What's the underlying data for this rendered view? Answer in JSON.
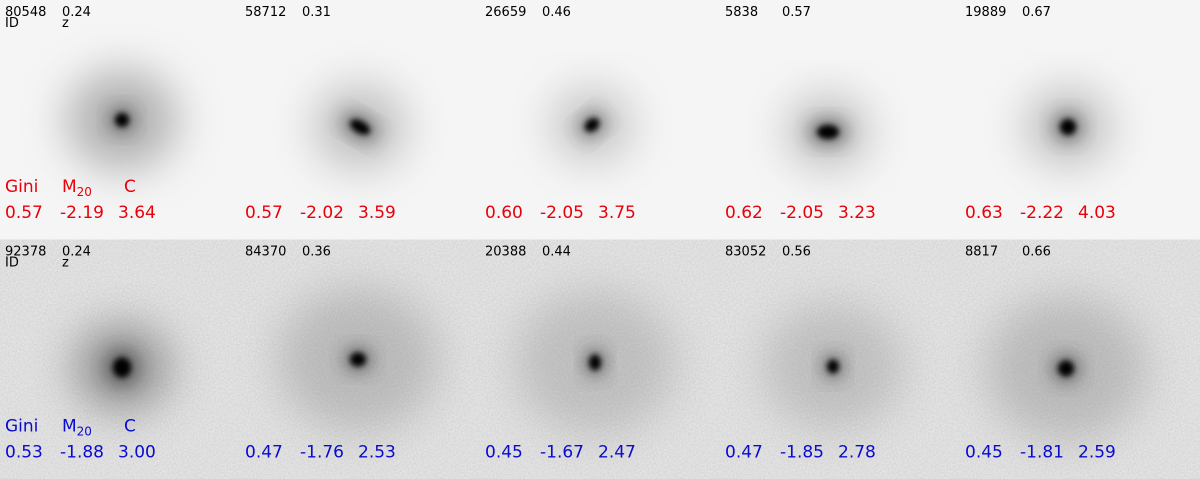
{
  "header_labels": {
    "id": "ID",
    "z": "z",
    "gini": "Gini",
    "m20_main": "M",
    "m20_sub": "20",
    "c": "C"
  },
  "rows": [
    {
      "color": "#e8000b",
      "panels": [
        {
          "id": "80548",
          "z": "0.24",
          "gini": "0.57",
          "m20": "-2.19",
          "c": "3.64"
        },
        {
          "id": "58712",
          "z": "0.31",
          "gini": "0.57",
          "m20": "-2.02",
          "c": "3.59"
        },
        {
          "id": "26659",
          "z": "0.46",
          "gini": "0.60",
          "m20": "-2.05",
          "c": "3.75"
        },
        {
          "id": "5838",
          "z": "0.57",
          "gini": "0.62",
          "m20": "-2.05",
          "c": "3.23"
        },
        {
          "id": "19889",
          "z": "0.67",
          "gini": "0.63",
          "m20": "-2.22",
          "c": "4.03"
        }
      ]
    },
    {
      "color": "#0a0ad0",
      "panels": [
        {
          "id": "92378",
          "z": "0.24",
          "gini": "0.53",
          "m20": "-1.88",
          "c": "3.00"
        },
        {
          "id": "84370",
          "z": "0.36",
          "gini": "0.47",
          "m20": "-1.76",
          "c": "2.53"
        },
        {
          "id": "20388",
          "z": "0.44",
          "gini": "0.45",
          "m20": "-1.67",
          "c": "2.47"
        },
        {
          "id": "83052",
          "z": "0.56",
          "gini": "0.47",
          "m20": "-1.85",
          "c": "2.78"
        },
        {
          "id": "8817",
          "z": "0.66",
          "gini": "0.45",
          "m20": "-1.81",
          "c": "2.59"
        }
      ]
    }
  ]
}
